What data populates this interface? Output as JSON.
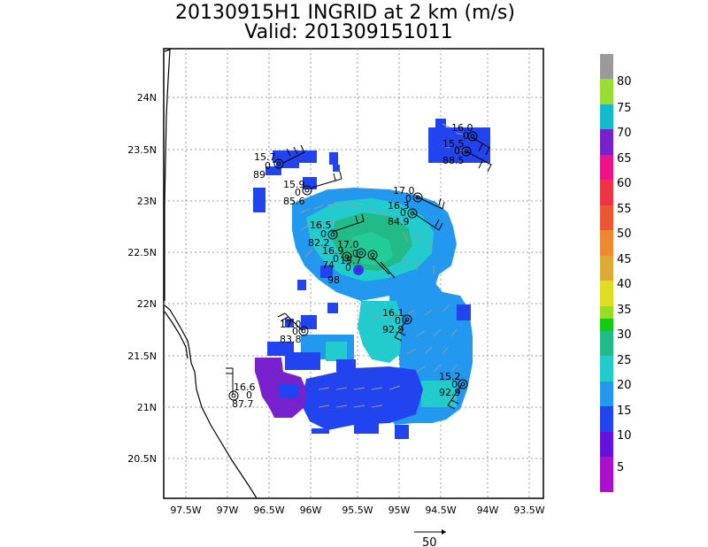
{
  "title": {
    "line1": "20130915H1 INGRID at 2 km (m/s)",
    "line2": "Valid: 201309151011"
  },
  "map": {
    "lat_labels": [
      "24N",
      "23.5N",
      "23N",
      "22.5N",
      "22N",
      "21.5N",
      "21N",
      "20.5N"
    ],
    "lon_labels": [
      "97.5W",
      "97W",
      "96.5W",
      "96W",
      "95.5W",
      "95W",
      "94.5W",
      "94W",
      "93.5W"
    ],
    "reference_vector_label": "50",
    "stations": [
      {
        "top": "15.7",
        "mid": "0",
        "bot": "89"
      },
      {
        "top": "15.9",
        "mid": "0",
        "bot": "85.6"
      },
      {
        "top": "16.5",
        "mid": "0",
        "bot": "82.2"
      },
      {
        "top": "16.9",
        "mid": "0",
        "bot": "74"
      },
      {
        "top": "17.0",
        "mid": "0",
        "bot": ""
      },
      {
        "top": "15.7",
        "mid": "0",
        "bot": ""
      },
      {
        "top": "",
        "mid": "",
        "bot": "98"
      },
      {
        "top": "17.0",
        "mid": "0",
        "bot": ""
      },
      {
        "top": "16.3",
        "mid": "0",
        "bot": "84.9"
      },
      {
        "top": "16.0",
        "mid": "0",
        "bot": ""
      },
      {
        "top": "15.5",
        "mid": "0",
        "bot": "88.5"
      },
      {
        "top": "16.1",
        "mid": "0",
        "bot": "92.9"
      },
      {
        "top": "17.0",
        "mid": "0",
        "bot": "83.8"
      },
      {
        "top": "16.6",
        "mid": "0",
        "bot": "87.7"
      },
      {
        "top": "15.2",
        "mid": "0",
        "bot": "92.9"
      }
    ]
  },
  "colorbar": {
    "labels": [
      "80",
      "75",
      "70",
      "65",
      "60",
      "55",
      "50",
      "45",
      "40",
      "35",
      "30",
      "25",
      "20",
      "15",
      "10",
      "5"
    ],
    "colors": [
      "#9a9a9a",
      "#99dd33",
      "#11bbcc",
      "#7722cc",
      "#ee1188",
      "#ee3344",
      "#ee5533",
      "#ee8833",
      "#ddaa33",
      "#dddd22",
      "#99dd22",
      "#11cc11",
      "#22bb88",
      "#22cccc",
      "#2299ee",
      "#2244ee",
      "#6611dd",
      "#aa11cc"
    ]
  }
}
